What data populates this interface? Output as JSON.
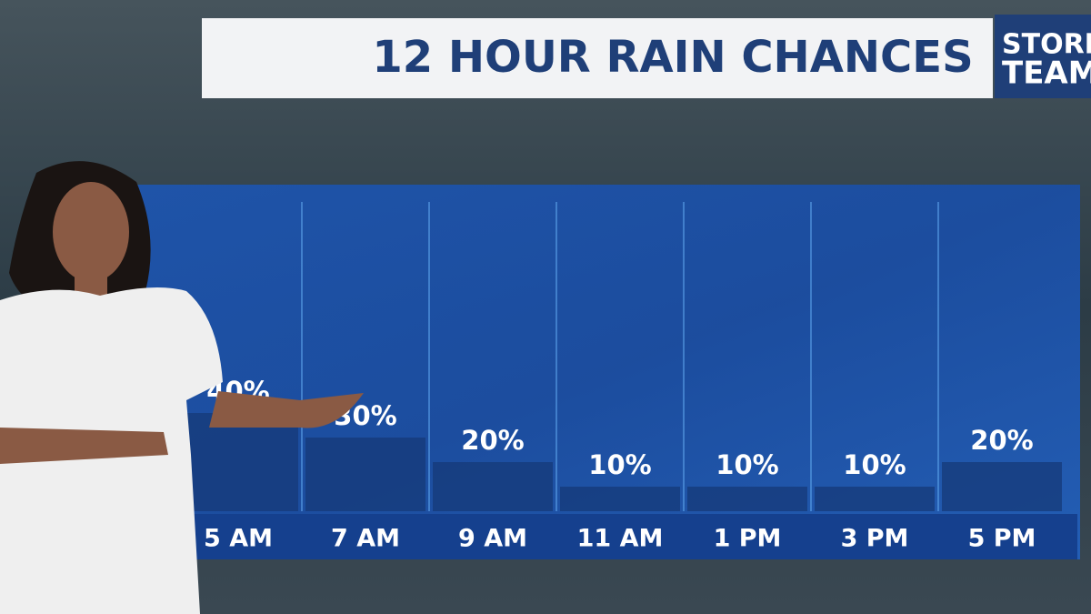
{
  "chart_data": {
    "type": "bar",
    "title": "12 HOUR RAIN CHANCES",
    "logo": [
      "STORM",
      "TEAM"
    ],
    "categories": [
      "5 AM",
      "7 AM",
      "9 AM",
      "11 AM",
      "1 PM",
      "3 PM",
      "5 PM"
    ],
    "values": [
      40,
      30,
      20,
      10,
      10,
      10,
      20
    ],
    "value_labels": [
      "40%",
      "30%",
      "20%",
      "10%",
      "10%",
      "10%",
      "20%"
    ],
    "color": "#163a78"
  }
}
